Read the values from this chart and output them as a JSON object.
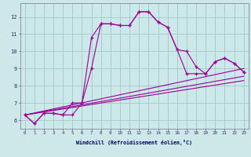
{
  "xlabel": "Windchill (Refroidissement éolien,°C)",
  "bg_color": "#cce8e8",
  "grid_color": "#aacccc",
  "line_color": "#990099",
  "x_ticks": [
    0,
    1,
    2,
    3,
    4,
    5,
    6,
    7,
    8,
    9,
    10,
    11,
    12,
    13,
    14,
    15,
    16,
    17,
    18,
    19,
    20,
    21,
    22,
    23
  ],
  "y_ticks": [
    6,
    7,
    8,
    9,
    10,
    11,
    12
  ],
  "xlim": [
    -0.5,
    23.5
  ],
  "ylim": [
    5.5,
    12.8
  ],
  "series1_x": [
    0,
    1,
    2,
    3,
    4,
    5,
    6,
    7,
    8,
    9,
    10,
    11,
    12,
    13,
    14,
    15,
    16,
    17,
    18,
    19,
    20,
    21,
    22,
    23
  ],
  "series1_y": [
    6.3,
    5.8,
    6.4,
    6.4,
    6.3,
    6.3,
    7.0,
    10.8,
    11.6,
    11.6,
    11.5,
    11.5,
    12.3,
    12.3,
    11.7,
    11.4,
    10.1,
    10.0,
    9.1,
    8.7,
    9.4,
    9.6,
    9.3,
    8.8
  ],
  "series2_x": [
    0,
    1,
    2,
    3,
    4,
    5,
    6,
    7,
    8,
    9,
    10,
    11,
    12,
    13,
    14,
    15,
    16,
    17,
    18,
    19,
    20,
    21,
    22,
    23
  ],
  "series2_y": [
    6.3,
    5.8,
    6.4,
    6.4,
    6.3,
    7.0,
    7.0,
    9.0,
    11.6,
    11.6,
    11.5,
    11.5,
    12.3,
    12.3,
    11.7,
    11.4,
    10.1,
    8.7,
    8.7,
    8.7,
    9.4,
    9.6,
    9.3,
    8.8
  ],
  "series3_x": [
    0,
    23
  ],
  "series3_y": [
    6.3,
    9.0
  ],
  "series4_x": [
    0,
    23
  ],
  "series4_y": [
    6.3,
    8.55
  ],
  "series5_x": [
    0,
    23
  ],
  "series5_y": [
    6.3,
    8.3
  ]
}
